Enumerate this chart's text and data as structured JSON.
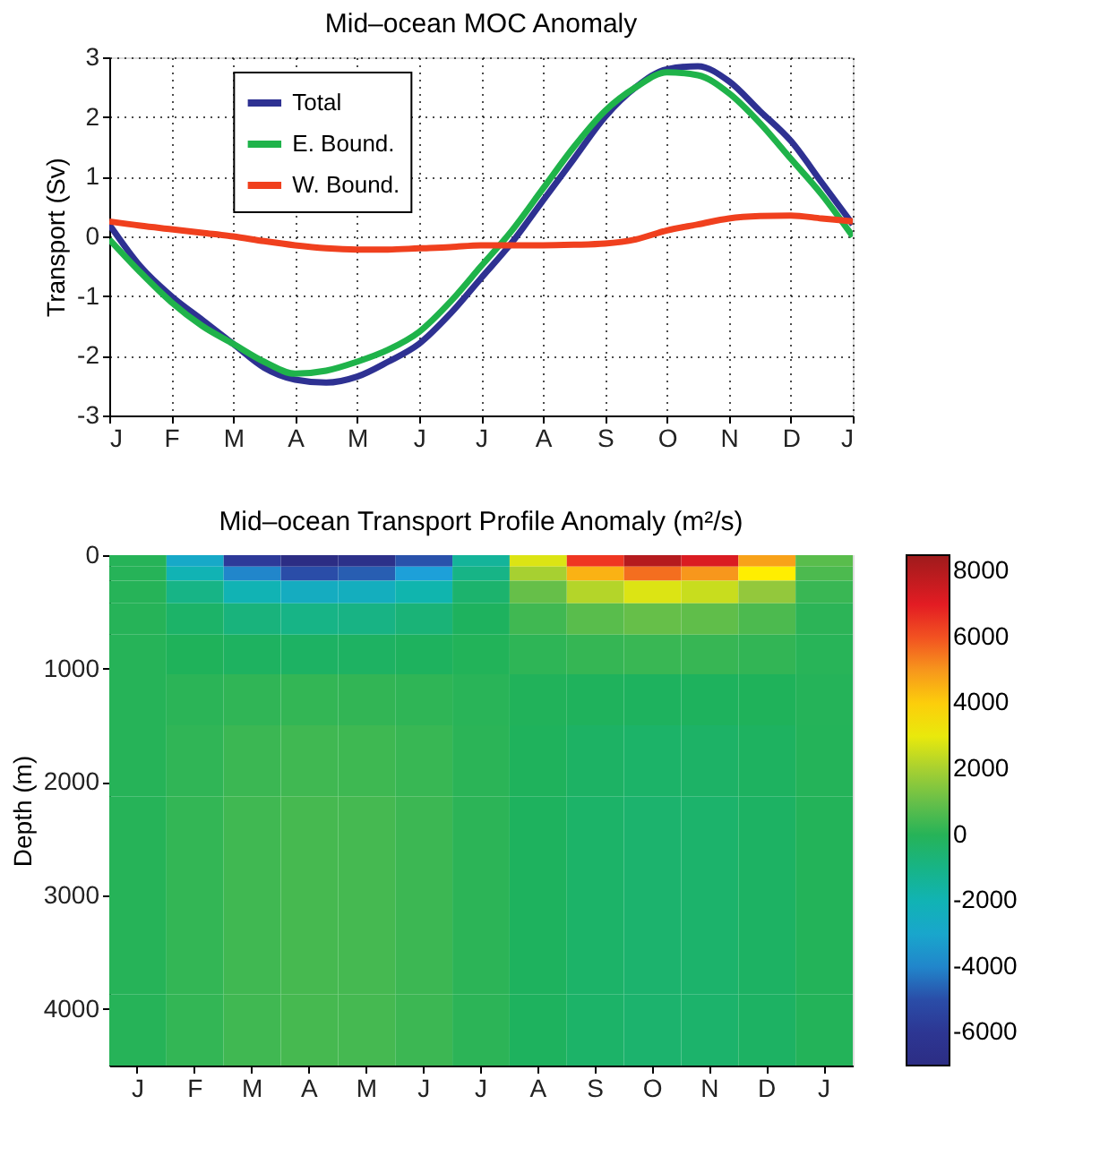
{
  "chart_data": [
    {
      "type": "line",
      "title": "Mid–ocean MOC Anomaly",
      "ylabel": "Transport (Sv)",
      "categories": [
        "J",
        null,
        "F",
        null,
        "M",
        null,
        "A",
        null,
        "M",
        null,
        "J",
        null,
        "J",
        null,
        "A",
        null,
        "S",
        null,
        "O",
        null,
        "N",
        null,
        "D",
        null,
        "J"
      ],
      "series": [
        {
          "name": "Total",
          "color": "#2e3192",
          "values": [
            0.2,
            -0.5,
            -1.0,
            -1.4,
            -1.8,
            -2.2,
            -2.4,
            -2.45,
            -2.35,
            -2.1,
            -1.8,
            -1.3,
            -0.7,
            -0.1,
            0.6,
            1.3,
            2.0,
            2.5,
            2.8,
            2.85,
            2.6,
            2.1,
            1.6,
            0.9,
            0.2
          ]
        },
        {
          "name": "E. Bound.",
          "color": "#1fb34a",
          "values": [
            -0.05,
            -0.6,
            -1.1,
            -1.5,
            -1.8,
            -2.1,
            -2.3,
            -2.25,
            -2.1,
            -1.9,
            -1.6,
            -1.1,
            -0.5,
            0.1,
            0.8,
            1.5,
            2.1,
            2.5,
            2.75,
            2.7,
            2.4,
            1.9,
            1.3,
            0.7,
            0.0
          ]
        },
        {
          "name": "W. Bound.",
          "color": "#f0401e",
          "values": [
            0.25,
            0.18,
            0.12,
            0.06,
            0.0,
            -0.08,
            -0.15,
            -0.2,
            -0.22,
            -0.22,
            -0.2,
            -0.18,
            -0.15,
            -0.15,
            -0.15,
            -0.14,
            -0.12,
            -0.05,
            0.1,
            0.2,
            0.3,
            0.34,
            0.35,
            0.3,
            0.25
          ]
        }
      ],
      "ylim": [
        -3,
        3
      ],
      "yticks": [
        -3,
        -2,
        -1,
        0,
        1,
        2,
        3
      ],
      "grid": true,
      "legend": "top left"
    },
    {
      "type": "heatmap",
      "title": "Mid–ocean Transport Profile Anomaly (m²/s)",
      "ylabel": "Depth (m)",
      "categories": [
        "J",
        "F",
        "M",
        "A",
        "M",
        "J",
        "J",
        "A",
        "S",
        "O",
        "N",
        "D",
        "J"
      ],
      "y": [
        50,
        150,
        300,
        550,
        850,
        1250,
        1750,
        2500,
        3500,
        4250
      ],
      "cells": [
        [
          0,
          -2800,
          -5600,
          -7000,
          -6600,
          -4900,
          -1400,
          2800,
          6400,
          8000,
          7200,
          4800,
          800
        ],
        [
          0,
          -2000,
          -4000,
          -5000,
          -4700,
          -3500,
          -1000,
          2000,
          4500,
          5600,
          5000,
          3400,
          600
        ],
        [
          0,
          -1000,
          -2000,
          -2500,
          -2400,
          -1800,
          -500,
          1000,
          2200,
          2800,
          2500,
          1700,
          300
        ],
        [
          0,
          -400,
          -800,
          -1000,
          -950,
          -700,
          -200,
          400,
          800,
          1000,
          900,
          600,
          100
        ],
        [
          0,
          -120,
          -240,
          -300,
          -280,
          -200,
          -60,
          120,
          240,
          300,
          270,
          180,
          30
        ],
        [
          0,
          80,
          160,
          200,
          190,
          140,
          40,
          -80,
          -160,
          -200,
          -180,
          -120,
          -20
        ],
        [
          0,
          160,
          320,
          400,
          380,
          280,
          80,
          -160,
          -320,
          -400,
          -360,
          -240,
          -40
        ],
        [
          0,
          200,
          400,
          500,
          480,
          350,
          100,
          -200,
          -400,
          -500,
          -450,
          -300,
          -50
        ],
        [
          0,
          200,
          400,
          500,
          480,
          350,
          100,
          -200,
          -400,
          -500,
          -450,
          -300,
          -50
        ],
        [
          0,
          200,
          400,
          500,
          480,
          350,
          100,
          -200,
          -400,
          -500,
          -450,
          -300,
          -50
        ]
      ],
      "ylim": [
        4500,
        0
      ],
      "yticks": [
        0,
        1000,
        2000,
        3000,
        4000
      ],
      "clim": [
        -7000,
        8500
      ],
      "cticks": [
        -6000,
        -4000,
        -2000,
        0,
        2000,
        4000,
        6000,
        8000
      ]
    }
  ]
}
